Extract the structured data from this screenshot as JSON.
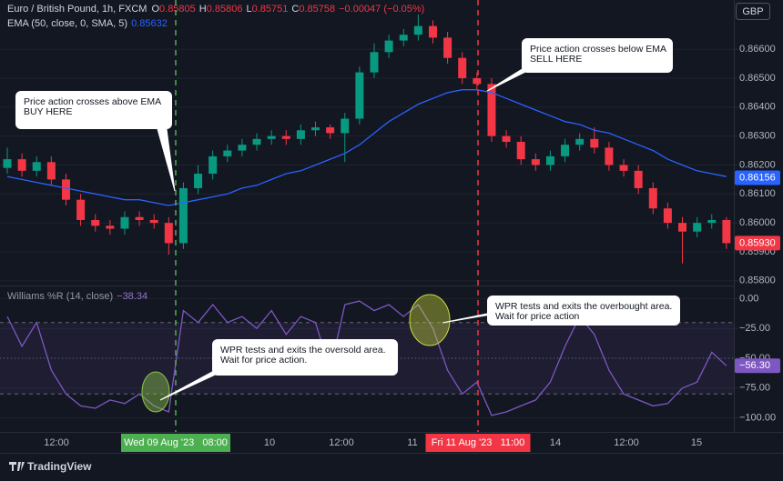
{
  "chart_data": [
    {
      "type": "candlestick",
      "title": "Euro / British Pound, 1h, FXCM",
      "ohlc_legend": [
        {
          "label": "O",
          "value": "0.85805"
        },
        {
          "label": "H",
          "value": "0.85806"
        },
        {
          "label": "L",
          "value": "0.85751"
        },
        {
          "label": "C",
          "value": "0.85758"
        }
      ],
      "change": "−0.00047 (−0.05%)",
      "currency": "GBP",
      "up_color": "#089981",
      "down_color": "#f23645",
      "open": [
        0.8619,
        0.8622,
        0.8618,
        0.8621,
        0.8615,
        0.8608,
        0.8601,
        0.8599,
        0.8598,
        0.8602,
        0.8601,
        0.86,
        0.8593,
        0.8612,
        0.8617,
        0.8623,
        0.8625,
        0.8627,
        0.8629,
        0.863,
        0.8629,
        0.8632,
        0.8633,
        0.8631,
        0.8636,
        0.8652,
        0.8659,
        0.8663,
        0.8665,
        0.8668,
        0.8664,
        0.8657,
        0.865,
        0.8648,
        0.863,
        0.8628,
        0.8622,
        0.862,
        0.8623,
        0.8627,
        0.8629,
        0.8626,
        0.862,
        0.8618,
        0.8612,
        0.8605,
        0.86,
        0.8597,
        0.86,
        0.8601
      ],
      "high": [
        0.8626,
        0.8624,
        0.8623,
        0.8623,
        0.8617,
        0.861,
        0.8603,
        0.8601,
        0.8604,
        0.8604,
        0.8603,
        0.8602,
        0.8614,
        0.862,
        0.8625,
        0.8627,
        0.8629,
        0.8631,
        0.8632,
        0.8632,
        0.8634,
        0.8635,
        0.8634,
        0.8638,
        0.8654,
        0.8662,
        0.8665,
        0.8667,
        0.8672,
        0.867,
        0.8666,
        0.8659,
        0.8652,
        0.865,
        0.8632,
        0.863,
        0.8624,
        0.8625,
        0.8629,
        0.8631,
        0.8633,
        0.8628,
        0.8622,
        0.862,
        0.8614,
        0.8607,
        0.8602,
        0.8602,
        0.8603,
        0.8602
      ],
      "low": [
        0.8617,
        0.8616,
        0.8616,
        0.8613,
        0.8606,
        0.8599,
        0.8597,
        0.8596,
        0.8596,
        0.8599,
        0.8598,
        0.8589,
        0.8591,
        0.861,
        0.8615,
        0.8621,
        0.8623,
        0.8625,
        0.8627,
        0.8627,
        0.8627,
        0.863,
        0.8629,
        0.8621,
        0.8634,
        0.865,
        0.8657,
        0.8661,
        0.8663,
        0.8662,
        0.8655,
        0.8648,
        0.8646,
        0.8628,
        0.8626,
        0.862,
        0.8618,
        0.8618,
        0.8621,
        0.8625,
        0.8624,
        0.8618,
        0.8616,
        0.861,
        0.8603,
        0.8598,
        0.8586,
        0.8595,
        0.8598,
        0.8591
      ],
      "close": [
        0.8622,
        0.8618,
        0.8621,
        0.8615,
        0.8608,
        0.8601,
        0.8599,
        0.8598,
        0.8602,
        0.8601,
        0.86,
        0.8593,
        0.8612,
        0.8617,
        0.8623,
        0.8625,
        0.8627,
        0.8629,
        0.863,
        0.8629,
        0.8632,
        0.8633,
        0.8631,
        0.8636,
        0.8652,
        0.8659,
        0.8663,
        0.8665,
        0.8668,
        0.8664,
        0.8657,
        0.865,
        0.8648,
        0.863,
        0.8628,
        0.8622,
        0.862,
        0.8623,
        0.8627,
        0.8629,
        0.8626,
        0.862,
        0.8618,
        0.8612,
        0.8605,
        0.86,
        0.8597,
        0.86,
        0.8601,
        0.8593
      ],
      "series": [
        {
          "name": "EMA (50, close, 0, SMA, 5)",
          "color": "#2962ff",
          "legend_value": "0.85632",
          "values": [
            0.8616,
            0.8615,
            0.8614,
            0.8613,
            0.8612,
            0.8611,
            0.861,
            0.8609,
            0.8608,
            0.8608,
            0.8607,
            0.8606,
            0.8607,
            0.8608,
            0.8609,
            0.861,
            0.8612,
            0.8613,
            0.8615,
            0.8617,
            0.8618,
            0.862,
            0.8622,
            0.8624,
            0.8627,
            0.8631,
            0.8635,
            0.8638,
            0.8641,
            0.8643,
            0.8645,
            0.8646,
            0.8646,
            0.8645,
            0.8643,
            0.8641,
            0.8639,
            0.8637,
            0.8635,
            0.8634,
            0.8632,
            0.8631,
            0.8629,
            0.8627,
            0.8625,
            0.8622,
            0.862,
            0.8618,
            0.8617,
            0.8616
          ]
        }
      ],
      "ylim": [
        0.8579,
        0.8677
      ],
      "yticks": [
        {
          "value": 0.858,
          "label": "0.85800"
        },
        {
          "value": 0.859,
          "label": "0.85900"
        },
        {
          "value": 0.86,
          "label": "0.86000"
        },
        {
          "value": 0.861,
          "label": "0.86100"
        },
        {
          "value": 0.862,
          "label": "0.86200"
        },
        {
          "value": 0.863,
          "label": "0.86300"
        },
        {
          "value": 0.864,
          "label": "0.86400"
        },
        {
          "value": 0.865,
          "label": "0.86500"
        },
        {
          "value": 0.866,
          "label": "0.86600"
        }
      ],
      "badges": [
        {
          "value": 0.86156,
          "label": "0.86156",
          "color": "#2962ff"
        },
        {
          "value": 0.8593,
          "label": "0.85930",
          "color": "#f23645"
        }
      ],
      "grid": true,
      "x_axis_labels": [
        "12:00",
        "10",
        "12:00",
        "11",
        "14",
        "12:00",
        "15"
      ],
      "markers": [
        {
          "label": "Wed 09 Aug '23   08:00",
          "color": "#4caf50"
        },
        {
          "label": "Fri 11 Aug '23   11:00",
          "color": "#f23645"
        }
      ],
      "annotations": [
        {
          "lines": [
            "Price action crosses above EMA",
            "BUY HERE"
          ]
        },
        {
          "lines": [
            "Price action crosses below EMA",
            "SELL HERE"
          ]
        },
        {
          "lines": [
            "WPR tests and exits the oversold area.",
            "Wait for price action."
          ]
        },
        {
          "lines": [
            "WPR tests and exits the overbought area.",
            "Wait for price action"
          ]
        }
      ],
      "branding": "TradingView"
    },
    {
      "type": "line",
      "series": [
        {
          "name": "Williams %R (14, close)",
          "color": "#7e57c2",
          "legend_value": "−38.34",
          "values": [
            -15,
            -40,
            -20,
            -60,
            -80,
            -90,
            -92,
            -85,
            -88,
            -80,
            -90,
            -95,
            -10,
            -20,
            -5,
            -20,
            -15,
            -25,
            -10,
            -30,
            -15,
            -20,
            -60,
            -5,
            -2,
            -10,
            -5,
            -15,
            -5,
            -25,
            -60,
            -80,
            -70,
            -98,
            -95,
            -90,
            -85,
            -70,
            -40,
            -15,
            -30,
            -60,
            -80,
            -85,
            -90,
            -88,
            -75,
            -70,
            -45,
            -56.3
          ]
        }
      ],
      "ylim": [
        -108,
        8
      ],
      "yticks": [
        {
          "value": 0,
          "label": "0.00"
        },
        {
          "value": -25,
          "label": "−25.00"
        },
        {
          "value": -50,
          "label": "−50.00"
        },
        {
          "value": -75,
          "label": "−75.00"
        },
        {
          "value": -100,
          "label": "−100.00"
        }
      ],
      "levels": [
        -20,
        -50,
        -80
      ],
      "badges": [
        {
          "value": -56.3,
          "label": "−56.30",
          "color": "#7e57c2"
        }
      ]
    }
  ]
}
